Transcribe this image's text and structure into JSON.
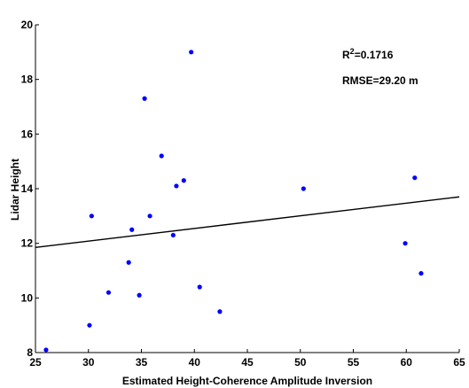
{
  "chart_data": {
    "type": "scatter",
    "xlabel": "Estimated Height-Coherence Amplitude Inversion",
    "ylabel": "Lidar Height",
    "xlim": [
      25,
      65
    ],
    "ylim": [
      8,
      20
    ],
    "xticks": [
      25,
      30,
      35,
      40,
      45,
      50,
      55,
      60,
      65
    ],
    "yticks": [
      8,
      10,
      12,
      14,
      16,
      18,
      20
    ],
    "grid": false,
    "point_color": "#0000ff",
    "line_color": "#000000",
    "points": [
      {
        "x": 26.0,
        "y": 8.1
      },
      {
        "x": 30.1,
        "y": 9.0
      },
      {
        "x": 30.3,
        "y": 13.0
      },
      {
        "x": 31.9,
        "y": 10.2
      },
      {
        "x": 33.8,
        "y": 11.3
      },
      {
        "x": 34.1,
        "y": 12.5
      },
      {
        "x": 34.8,
        "y": 10.1
      },
      {
        "x": 35.3,
        "y": 17.3
      },
      {
        "x": 35.8,
        "y": 13.0
      },
      {
        "x": 36.9,
        "y": 15.2
      },
      {
        "x": 38.0,
        "y": 12.3
      },
      {
        "x": 38.3,
        "y": 14.1
      },
      {
        "x": 39.0,
        "y": 14.3
      },
      {
        "x": 39.7,
        "y": 19.0
      },
      {
        "x": 40.5,
        "y": 10.4
      },
      {
        "x": 42.4,
        "y": 9.5
      },
      {
        "x": 50.3,
        "y": 14.0
      },
      {
        "x": 59.9,
        "y": 12.0
      },
      {
        "x": 60.8,
        "y": 14.4
      },
      {
        "x": 61.4,
        "y": 10.9
      }
    ],
    "fit_line": {
      "x": [
        25,
        65
      ],
      "y": [
        11.85,
        13.7
      ]
    },
    "annotations": {
      "r2_base": "R",
      "r2_sup": "2",
      "r2_value": "=0.1716",
      "rmse": "RMSE=29.20 m"
    }
  }
}
